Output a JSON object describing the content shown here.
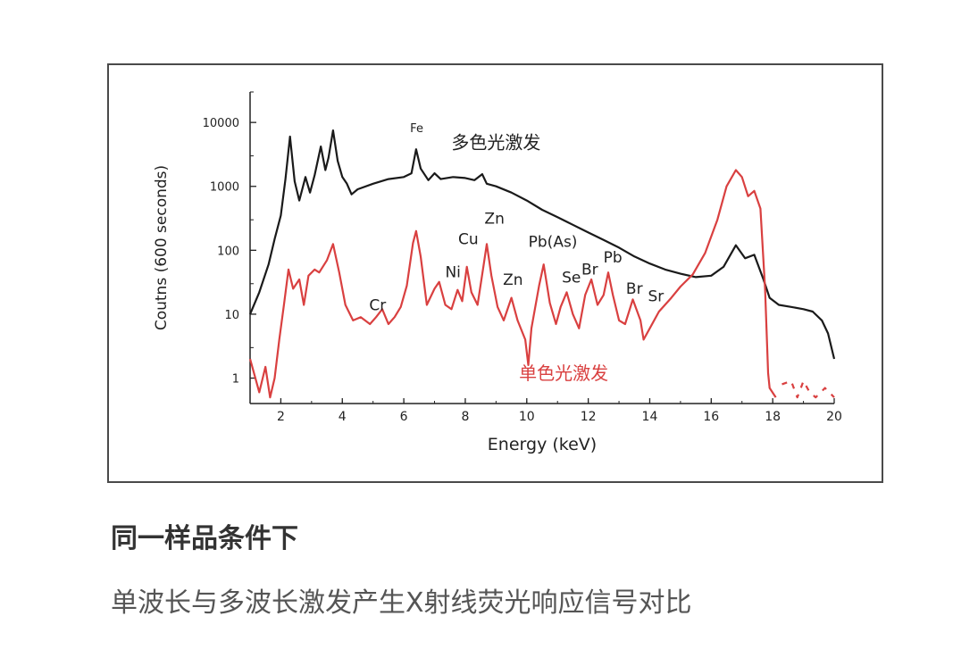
{
  "chart_data": {
    "type": "line",
    "xlabel": "Energy (keV)",
    "ylabel": "Coutns (600 seconds)",
    "xlim": [
      1,
      20
    ],
    "ylim": [
      0.4,
      30000
    ],
    "y_scale": "log",
    "x_ticks": [
      2,
      4,
      6,
      8,
      10,
      12,
      14,
      16,
      18,
      20
    ],
    "y_ticks": [
      {
        "value": 1,
        "label": "1"
      },
      {
        "value": 10,
        "label": "10"
      },
      {
        "value": 100,
        "label": "100"
      },
      {
        "value": 1000,
        "label": "1000"
      },
      {
        "value": 10000,
        "label": "10000"
      }
    ],
    "colors": {
      "poly": "#1a1a1a",
      "mono": "#d94040"
    },
    "series": [
      {
        "name": "多色光激发",
        "key": "poly",
        "points": [
          [
            1.0,
            10
          ],
          [
            1.3,
            22
          ],
          [
            1.6,
            60
          ],
          [
            1.8,
            150
          ],
          [
            2.0,
            350
          ],
          [
            2.15,
            1300
          ],
          [
            2.3,
            6000
          ],
          [
            2.45,
            1200
          ],
          [
            2.6,
            600
          ],
          [
            2.8,
            1400
          ],
          [
            2.95,
            800
          ],
          [
            3.1,
            1500
          ],
          [
            3.3,
            4200
          ],
          [
            3.45,
            1800
          ],
          [
            3.55,
            2800
          ],
          [
            3.7,
            7500
          ],
          [
            3.85,
            2500
          ],
          [
            4.0,
            1400
          ],
          [
            4.15,
            1100
          ],
          [
            4.3,
            750
          ],
          [
            4.5,
            900
          ],
          [
            5.0,
            1100
          ],
          [
            5.5,
            1300
          ],
          [
            6.0,
            1400
          ],
          [
            6.25,
            1600
          ],
          [
            6.4,
            3800
          ],
          [
            6.55,
            1900
          ],
          [
            6.8,
            1250
          ],
          [
            7.0,
            1600
          ],
          [
            7.2,
            1300
          ],
          [
            7.6,
            1400
          ],
          [
            8.0,
            1350
          ],
          [
            8.3,
            1250
          ],
          [
            8.55,
            1550
          ],
          [
            8.7,
            1100
          ],
          [
            9.0,
            1000
          ],
          [
            9.5,
            800
          ],
          [
            10.0,
            600
          ],
          [
            10.5,
            430
          ],
          [
            11.0,
            330
          ],
          [
            11.5,
            250
          ],
          [
            12.0,
            190
          ],
          [
            12.5,
            145
          ],
          [
            13.0,
            110
          ],
          [
            13.5,
            80
          ],
          [
            14.0,
            62
          ],
          [
            14.5,
            50
          ],
          [
            15.0,
            43
          ],
          [
            15.5,
            38
          ],
          [
            16.0,
            40
          ],
          [
            16.4,
            55
          ],
          [
            16.8,
            120
          ],
          [
            17.1,
            75
          ],
          [
            17.4,
            85
          ],
          [
            17.7,
            35
          ],
          [
            17.9,
            18
          ],
          [
            18.2,
            14
          ],
          [
            18.6,
            13
          ],
          [
            19.0,
            12
          ],
          [
            19.3,
            11
          ],
          [
            19.6,
            8
          ],
          [
            19.8,
            5
          ],
          [
            20.0,
            2
          ]
        ]
      },
      {
        "name": "单色光激发",
        "key": "mono",
        "points": [
          [
            1.0,
            2
          ],
          [
            1.3,
            0.6
          ],
          [
            1.5,
            1.5
          ],
          [
            1.65,
            0.5
          ],
          [
            1.8,
            1.0
          ],
          [
            1.95,
            4
          ],
          [
            2.1,
            14
          ],
          [
            2.25,
            50
          ],
          [
            2.4,
            25
          ],
          [
            2.6,
            35
          ],
          [
            2.75,
            14
          ],
          [
            2.9,
            40
          ],
          [
            3.1,
            50
          ],
          [
            3.25,
            45
          ],
          [
            3.5,
            70
          ],
          [
            3.7,
            125
          ],
          [
            3.9,
            45
          ],
          [
            4.1,
            14
          ],
          [
            4.35,
            8
          ],
          [
            4.6,
            9
          ],
          [
            4.9,
            7
          ],
          [
            5.1,
            9
          ],
          [
            5.3,
            12
          ],
          [
            5.5,
            7
          ],
          [
            5.7,
            9
          ],
          [
            5.9,
            13
          ],
          [
            6.1,
            28
          ],
          [
            6.3,
            130
          ],
          [
            6.4,
            200
          ],
          [
            6.55,
            80
          ],
          [
            6.75,
            14
          ],
          [
            7.0,
            25
          ],
          [
            7.15,
            32
          ],
          [
            7.35,
            14
          ],
          [
            7.55,
            12
          ],
          [
            7.75,
            24
          ],
          [
            7.9,
            16
          ],
          [
            8.05,
            55
          ],
          [
            8.2,
            22
          ],
          [
            8.4,
            14
          ],
          [
            8.6,
            60
          ],
          [
            8.7,
            125
          ],
          [
            8.85,
            40
          ],
          [
            9.05,
            13
          ],
          [
            9.25,
            8
          ],
          [
            9.5,
            18
          ],
          [
            9.7,
            8
          ],
          [
            9.95,
            4
          ],
          [
            10.05,
            1.6
          ],
          [
            10.15,
            6
          ],
          [
            10.4,
            28
          ],
          [
            10.55,
            60
          ],
          [
            10.75,
            15
          ],
          [
            10.95,
            7
          ],
          [
            11.1,
            13
          ],
          [
            11.3,
            22
          ],
          [
            11.5,
            10
          ],
          [
            11.7,
            6
          ],
          [
            11.9,
            20
          ],
          [
            12.1,
            35
          ],
          [
            12.3,
            14
          ],
          [
            12.5,
            20
          ],
          [
            12.65,
            45
          ],
          [
            12.8,
            20
          ],
          [
            13.0,
            8
          ],
          [
            13.2,
            7
          ],
          [
            13.45,
            17
          ],
          [
            13.7,
            8
          ],
          [
            13.8,
            4
          ],
          [
            14.0,
            6
          ],
          [
            14.3,
            11
          ],
          [
            14.7,
            18
          ],
          [
            15.0,
            27
          ],
          [
            15.4,
            42
          ],
          [
            15.8,
            90
          ],
          [
            16.2,
            300
          ],
          [
            16.5,
            1000
          ],
          [
            16.8,
            1800
          ],
          [
            17.0,
            1400
          ],
          [
            17.2,
            700
          ],
          [
            17.4,
            850
          ],
          [
            17.6,
            450
          ],
          [
            17.75,
            25
          ],
          [
            17.85,
            1.2
          ],
          [
            17.9,
            0.7
          ],
          [
            18.1,
            0.5
          ]
        ]
      },
      {
        "name": "",
        "key": "mono-tail",
        "points": [
          [
            18.3,
            0.8
          ],
          [
            18.6,
            0.9
          ],
          [
            18.8,
            0.5
          ],
          [
            19.0,
            0.9
          ],
          [
            19.2,
            0.6
          ],
          [
            19.4,
            0.5
          ],
          [
            19.7,
            0.7
          ],
          [
            20.0,
            0.5
          ]
        ]
      }
    ],
    "annotations": [
      {
        "text": "Fe",
        "x": 6.42,
        "y": 7000,
        "key": "fe",
        "size": 13
      },
      {
        "text": "多色光激发",
        "x": 9.0,
        "y": 3900,
        "key": "poly-label",
        "size": 20
      },
      {
        "text": "单色光激发",
        "x": 11.2,
        "y": 0.95,
        "key": "mono-label",
        "size": 20,
        "color": "#d94040"
      },
      {
        "text": "Cr",
        "x": 5.15,
        "y": 11.5,
        "key": "cr",
        "size": 17
      },
      {
        "text": "Ni",
        "x": 7.6,
        "y": 38,
        "key": "ni",
        "size": 17
      },
      {
        "text": "Cu",
        "x": 8.1,
        "y": 125,
        "key": "cu",
        "size": 17
      },
      {
        "text": "Zn",
        "x": 8.95,
        "y": 260,
        "key": "zn1",
        "size": 17
      },
      {
        "text": "Zn",
        "x": 9.55,
        "y": 29,
        "key": "zn2",
        "size": 17
      },
      {
        "text": "Pb(As)",
        "x": 10.85,
        "y": 113,
        "key": "pbas",
        "size": 17
      },
      {
        "text": "Se",
        "x": 11.45,
        "y": 31,
        "key": "se",
        "size": 17
      },
      {
        "text": "Br",
        "x": 12.05,
        "y": 42,
        "key": "br1",
        "size": 17
      },
      {
        "text": "Pb",
        "x": 12.8,
        "y": 64,
        "key": "pb",
        "size": 17
      },
      {
        "text": "Br",
        "x": 13.5,
        "y": 21,
        "key": "br2",
        "size": 17
      },
      {
        "text": "Sr",
        "x": 14.2,
        "y": 16,
        "key": "sr",
        "size": 17
      }
    ]
  },
  "caption": {
    "title": "同一样品条件下",
    "subtitle": "单波长与多波长激发产生X射线荧光响应信号对比"
  }
}
